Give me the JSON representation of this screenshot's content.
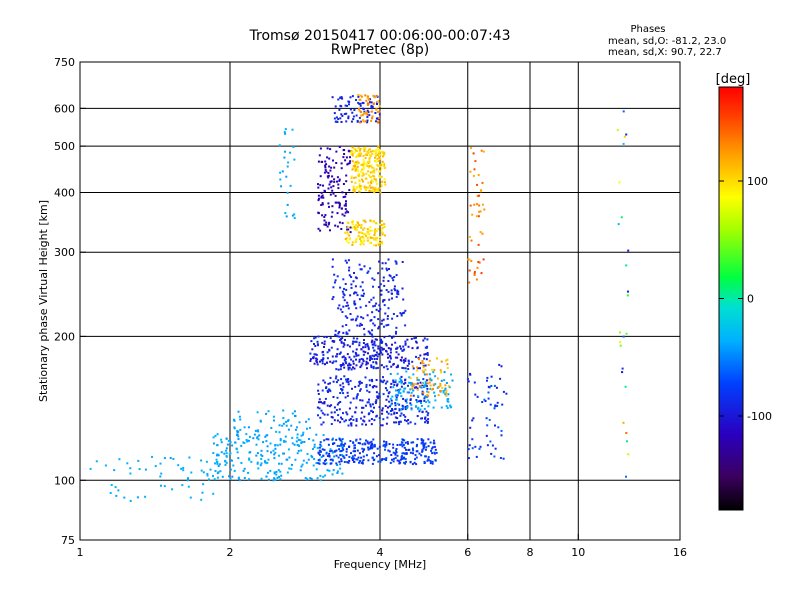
{
  "chart_data": {
    "type": "scatter",
    "title": "Tromsø 20150417 00:06:00-00:07:43",
    "subtitle": "RwPretec (8p)",
    "stats": {
      "heading": "Phases",
      "line_o": "mean, sd,O: -81.2, 23.0",
      "line_x": "mean, sd,X:  90.7, 22.7"
    },
    "xlabel": "Frequency [MHz]",
    "ylabel": "Stationary phase Virtual Height [km]",
    "x_scale": "log",
    "y_scale": "log",
    "xlim": [
      1,
      16
    ],
    "ylim": [
      75,
      750
    ],
    "x_ticks": [
      1,
      2,
      4,
      6,
      8,
      10,
      16
    ],
    "x_tick_labels": [
      "1",
      "2",
      "4",
      "6",
      "8",
      "10",
      "16"
    ],
    "x_gridlines": [
      2,
      4,
      6,
      8,
      10
    ],
    "y_ticks": [
      75,
      100,
      200,
      300,
      400,
      500,
      600,
      750
    ],
    "y_tick_labels": [
      "75",
      "100",
      "200",
      "300",
      "400",
      "500",
      "600",
      "750"
    ],
    "y_gridlines": [
      100,
      200,
      300,
      400,
      500,
      600
    ],
    "grid": true,
    "colorbar": {
      "unit": "[deg]",
      "range": [
        -180,
        180
      ],
      "ticks": [
        100,
        0,
        -100
      ],
      "tick_labels": [
        "100",
        "0",
        "-100"
      ],
      "colormap": "rainbow"
    },
    "clusters": [
      {
        "f": [
          1.05,
          1.9
        ],
        "h": [
          90,
          112
        ],
        "phase": [
          -40,
          -30
        ],
        "n": 60
      },
      {
        "f": [
          1.85,
          3.4
        ],
        "h": [
          100,
          125
        ],
        "phase": [
          -45,
          -30
        ],
        "n": 220
      },
      {
        "f": [
          2.0,
          2.9
        ],
        "h": [
          118,
          140
        ],
        "phase": [
          -45,
          -35
        ],
        "n": 70
      },
      {
        "f": [
          3.0,
          5.2
        ],
        "h": [
          108,
          122
        ],
        "phase": [
          -90,
          -65
        ],
        "n": 300
      },
      {
        "f": [
          3.0,
          5.0
        ],
        "h": [
          130,
          165
        ],
        "phase": [
          -105,
          -75
        ],
        "n": 320
      },
      {
        "f": [
          2.9,
          5.0
        ],
        "h": [
          170,
          200
        ],
        "phase": [
          -110,
          -80
        ],
        "n": 300
      },
      {
        "f": [
          4.2,
          5.6
        ],
        "h": [
          140,
          170
        ],
        "phase": [
          -45,
          -30
        ],
        "n": 110
      },
      {
        "f": [
          4.6,
          5.5
        ],
        "h": [
          150,
          180
        ],
        "phase": [
          100,
          135
        ],
        "n": 60
      },
      {
        "f": [
          3.2,
          4.5
        ],
        "h": [
          200,
          290
        ],
        "phase": [
          -100,
          -80
        ],
        "n": 200
      },
      {
        "f": [
          3.0,
          3.5
        ],
        "h": [
          330,
          500
        ],
        "phase": [
          -130,
          -110
        ],
        "n": 140
      },
      {
        "f": [
          3.4,
          4.1
        ],
        "h": [
          310,
          350
        ],
        "phase": [
          85,
          120
        ],
        "n": 120
      },
      {
        "f": [
          3.5,
          4.1
        ],
        "h": [
          400,
          500
        ],
        "phase": [
          85,
          120
        ],
        "n": 240
      },
      {
        "f": [
          3.2,
          4.0
        ],
        "h": [
          560,
          640
        ],
        "phase": [
          -100,
          -80
        ],
        "n": 80
      },
      {
        "f": [
          3.6,
          4.0
        ],
        "h": [
          560,
          640
        ],
        "phase": [
          110,
          140
        ],
        "n": 50
      },
      {
        "f": [
          2.5,
          2.7
        ],
        "h": [
          350,
          550
        ],
        "phase": [
          -45,
          -30
        ],
        "n": 25
      },
      {
        "f": [
          6.0,
          6.5
        ],
        "h": [
          250,
          500
        ],
        "phase": [
          110,
          160
        ],
        "n": 45
      },
      {
        "f": [
          6.0,
          7.2
        ],
        "h": [
          110,
          175
        ],
        "phase": [
          -100,
          -60
        ],
        "n": 60
      },
      {
        "f": [
          12.0,
          12.6
        ],
        "h": [
          100,
          600
        ],
        "phase": [
          -110,
          170
        ],
        "n": 25
      }
    ]
  }
}
